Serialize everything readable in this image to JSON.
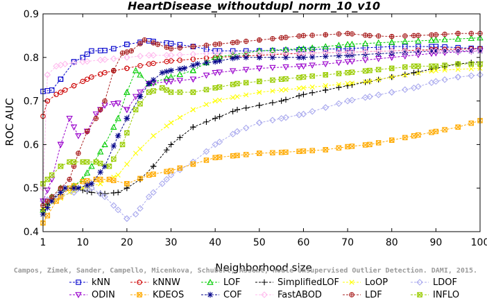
{
  "chart_data": {
    "type": "line",
    "title": "HeartDisease_withoutdupl_norm_10_v10",
    "xlabel": "Neighborhood size",
    "ylabel": "ROC AUC",
    "xlim": [
      1,
      100
    ],
    "ylim": [
      0.4,
      0.9
    ],
    "xticks": [
      1,
      10,
      20,
      30,
      40,
      50,
      60,
      70,
      80,
      90,
      100
    ],
    "yticks": [
      0.4,
      0.5,
      0.6,
      0.7,
      0.8,
      0.9
    ],
    "grid": false,
    "legend_position": "bottom",
    "credit": "Campos, Zimek, Sander, Campello, Micenkova, Schubert, Assent, Houle  Unsupervised Outlier Detection. DAMI, 2015.",
    "series": [
      {
        "name": "kNN",
        "color": "#0000cc",
        "marker": "square",
        "points": [
          [
            1,
            0.722
          ],
          [
            3,
            0.725
          ],
          [
            5,
            0.75
          ],
          [
            8,
            0.79
          ],
          [
            10,
            0.8
          ],
          [
            12,
            0.815
          ],
          [
            15,
            0.816
          ],
          [
            17,
            0.82
          ],
          [
            20,
            0.83
          ],
          [
            25,
            0.838
          ],
          [
            30,
            0.832
          ],
          [
            35,
            0.825
          ],
          [
            40,
            0.815
          ],
          [
            50,
            0.815
          ],
          [
            60,
            0.818
          ],
          [
            70,
            0.82
          ],
          [
            80,
            0.825
          ],
          [
            90,
            0.825
          ],
          [
            100,
            0.82
          ]
        ]
      },
      {
        "name": "kNNW",
        "color": "#cc0000",
        "marker": "circle",
        "points": [
          [
            1,
            0.665
          ],
          [
            2,
            0.7
          ],
          [
            4,
            0.715
          ],
          [
            6,
            0.725
          ],
          [
            8,
            0.735
          ],
          [
            10,
            0.745
          ],
          [
            12,
            0.755
          ],
          [
            15,
            0.765
          ],
          [
            20,
            0.775
          ],
          [
            25,
            0.785
          ],
          [
            30,
            0.792
          ],
          [
            40,
            0.8
          ],
          [
            50,
            0.805
          ],
          [
            60,
            0.81
          ],
          [
            70,
            0.812
          ],
          [
            80,
            0.815
          ],
          [
            90,
            0.818
          ],
          [
            100,
            0.82
          ]
        ]
      },
      {
        "name": "LOF",
        "color": "#00cc00",
        "marker": "triangle",
        "points": [
          [
            1,
            0.45
          ],
          [
            3,
            0.48
          ],
          [
            5,
            0.5
          ],
          [
            8,
            0.505
          ],
          [
            10,
            0.52
          ],
          [
            12,
            0.55
          ],
          [
            15,
            0.6
          ],
          [
            18,
            0.66
          ],
          [
            20,
            0.72
          ],
          [
            22,
            0.77
          ],
          [
            25,
            0.74
          ],
          [
            30,
            0.755
          ],
          [
            35,
            0.77
          ],
          [
            40,
            0.8
          ],
          [
            50,
            0.815
          ],
          [
            60,
            0.82
          ],
          [
            70,
            0.83
          ],
          [
            80,
            0.835
          ],
          [
            90,
            0.84
          ],
          [
            100,
            0.845
          ]
        ]
      },
      {
        "name": "SimplifiedLOF",
        "color": "#000000",
        "marker": "plus",
        "points": [
          [
            1,
            0.45
          ],
          [
            3,
            0.475
          ],
          [
            5,
            0.49
          ],
          [
            8,
            0.5
          ],
          [
            10,
            0.495
          ],
          [
            12,
            0.49
          ],
          [
            15,
            0.487
          ],
          [
            18,
            0.49
          ],
          [
            20,
            0.5
          ],
          [
            23,
            0.52
          ],
          [
            26,
            0.55
          ],
          [
            30,
            0.6
          ],
          [
            35,
            0.64
          ],
          [
            40,
            0.66
          ],
          [
            45,
            0.68
          ],
          [
            50,
            0.69
          ],
          [
            55,
            0.7
          ],
          [
            60,
            0.715
          ],
          [
            65,
            0.725
          ],
          [
            70,
            0.735
          ],
          [
            75,
            0.745
          ],
          [
            80,
            0.755
          ],
          [
            85,
            0.765
          ],
          [
            90,
            0.775
          ],
          [
            95,
            0.785
          ],
          [
            100,
            0.79
          ]
        ]
      },
      {
        "name": "LoOP",
        "color": "#ffff00",
        "marker": "cross",
        "points": [
          [
            1,
            0.45
          ],
          [
            4,
            0.47
          ],
          [
            7,
            0.49
          ],
          [
            10,
            0.5
          ],
          [
            14,
            0.51
          ],
          [
            18,
            0.53
          ],
          [
            22,
            0.58
          ],
          [
            26,
            0.62
          ],
          [
            30,
            0.65
          ],
          [
            35,
            0.68
          ],
          [
            40,
            0.7
          ],
          [
            45,
            0.71
          ],
          [
            50,
            0.72
          ],
          [
            55,
            0.725
          ],
          [
            60,
            0.73
          ],
          [
            65,
            0.735
          ],
          [
            70,
            0.74
          ],
          [
            75,
            0.745
          ],
          [
            80,
            0.755
          ],
          [
            90,
            0.77
          ],
          [
            100,
            0.775
          ]
        ]
      },
      {
        "name": "LDOF",
        "color": "#aaaaee",
        "marker": "diamond",
        "points": [
          [
            1,
            0.47
          ],
          [
            4,
            0.48
          ],
          [
            8,
            0.49
          ],
          [
            12,
            0.5
          ],
          [
            15,
            0.48
          ],
          [
            18,
            0.45
          ],
          [
            20,
            0.43
          ],
          [
            22,
            0.44
          ],
          [
            25,
            0.48
          ],
          [
            28,
            0.51
          ],
          [
            30,
            0.53
          ],
          [
            35,
            0.56
          ],
          [
            40,
            0.6
          ],
          [
            45,
            0.63
          ],
          [
            50,
            0.65
          ],
          [
            55,
            0.66
          ],
          [
            60,
            0.67
          ],
          [
            65,
            0.685
          ],
          [
            70,
            0.7
          ],
          [
            75,
            0.71
          ],
          [
            80,
            0.72
          ],
          [
            85,
            0.73
          ],
          [
            90,
            0.745
          ],
          [
            95,
            0.755
          ],
          [
            100,
            0.76
          ]
        ]
      },
      {
        "name": "ODIN",
        "color": "#9900cc",
        "marker": "triangle-down",
        "points": [
          [
            1,
            0.47
          ],
          [
            3,
            0.52
          ],
          [
            5,
            0.6
          ],
          [
            7,
            0.66
          ],
          [
            9,
            0.62
          ],
          [
            11,
            0.63
          ],
          [
            13,
            0.67
          ],
          [
            15,
            0.69
          ],
          [
            18,
            0.695
          ],
          [
            20,
            0.68
          ],
          [
            22,
            0.71
          ],
          [
            25,
            0.74
          ],
          [
            30,
            0.745
          ],
          [
            35,
            0.75
          ],
          [
            40,
            0.765
          ],
          [
            50,
            0.775
          ],
          [
            60,
            0.78
          ],
          [
            70,
            0.79
          ],
          [
            80,
            0.8
          ],
          [
            90,
            0.81
          ],
          [
            100,
            0.815
          ]
        ]
      },
      {
        "name": "KDEOS",
        "color": "#ffaa00",
        "marker": "square-x",
        "points": [
          [
            1,
            0.42
          ],
          [
            4,
            0.47
          ],
          [
            7,
            0.5
          ],
          [
            10,
            0.515
          ],
          [
            13,
            0.52
          ],
          [
            16,
            0.52
          ],
          [
            20,
            0.51
          ],
          [
            25,
            0.53
          ],
          [
            30,
            0.54
          ],
          [
            35,
            0.555
          ],
          [
            40,
            0.57
          ],
          [
            45,
            0.575
          ],
          [
            50,
            0.58
          ],
          [
            55,
            0.582
          ],
          [
            60,
            0.585
          ],
          [
            65,
            0.588
          ],
          [
            70,
            0.595
          ],
          [
            75,
            0.6
          ],
          [
            80,
            0.61
          ],
          [
            85,
            0.62
          ],
          [
            90,
            0.63
          ],
          [
            95,
            0.64
          ],
          [
            100,
            0.655
          ]
        ]
      },
      {
        "name": "COF",
        "color": "#000088",
        "marker": "star",
        "points": [
          [
            1,
            0.44
          ],
          [
            3,
            0.47
          ],
          [
            6,
            0.5
          ],
          [
            9,
            0.5
          ],
          [
            12,
            0.51
          ],
          [
            15,
            0.55
          ],
          [
            18,
            0.62
          ],
          [
            20,
            0.66
          ],
          [
            23,
            0.71
          ],
          [
            25,
            0.74
          ],
          [
            28,
            0.765
          ],
          [
            30,
            0.77
          ],
          [
            33,
            0.775
          ],
          [
            36,
            0.785
          ],
          [
            40,
            0.79
          ],
          [
            45,
            0.8
          ],
          [
            50,
            0.8
          ],
          [
            60,
            0.8
          ],
          [
            70,
            0.805
          ],
          [
            80,
            0.81
          ],
          [
            90,
            0.815
          ],
          [
            100,
            0.815
          ]
        ]
      },
      {
        "name": "FastABOD",
        "color": "#ffbbee",
        "marker": "diamond",
        "points": [
          [
            1,
            0.5
          ],
          [
            2,
            0.76
          ],
          [
            4,
            0.78
          ],
          [
            6,
            0.785
          ],
          [
            10,
            0.79
          ],
          [
            15,
            0.795
          ],
          [
            20,
            0.8
          ],
          [
            25,
            0.805
          ],
          [
            30,
            0.805
          ],
          [
            40,
            0.81
          ],
          [
            50,
            0.81
          ],
          [
            60,
            0.81
          ],
          [
            70,
            0.812
          ],
          [
            80,
            0.815
          ],
          [
            90,
            0.815
          ],
          [
            100,
            0.815
          ]
        ]
      },
      {
        "name": "LDF",
        "color": "#aa2222",
        "marker": "circle-plus",
        "points": [
          [
            1,
            0.46
          ],
          [
            3,
            0.48
          ],
          [
            5,
            0.5
          ],
          [
            7,
            0.52
          ],
          [
            9,
            0.58
          ],
          [
            11,
            0.63
          ],
          [
            13,
            0.66
          ],
          [
            15,
            0.7
          ],
          [
            17,
            0.77
          ],
          [
            19,
            0.81
          ],
          [
            21,
            0.815
          ],
          [
            24,
            0.84
          ],
          [
            27,
            0.83
          ],
          [
            30,
            0.82
          ],
          [
            35,
            0.825
          ],
          [
            40,
            0.83
          ],
          [
            45,
            0.835
          ],
          [
            50,
            0.84
          ],
          [
            55,
            0.845
          ],
          [
            60,
            0.85
          ],
          [
            65,
            0.852
          ],
          [
            70,
            0.855
          ],
          [
            75,
            0.85
          ],
          [
            80,
            0.848
          ],
          [
            85,
            0.85
          ],
          [
            90,
            0.852
          ],
          [
            95,
            0.855
          ],
          [
            100,
            0.855
          ]
        ]
      },
      {
        "name": "INFLO",
        "color": "#99cc00",
        "marker": "square-x",
        "points": [
          [
            1,
            0.51
          ],
          [
            3,
            0.53
          ],
          [
            5,
            0.55
          ],
          [
            7,
            0.56
          ],
          [
            10,
            0.56
          ],
          [
            13,
            0.56
          ],
          [
            16,
            0.55
          ],
          [
            19,
            0.6
          ],
          [
            22,
            0.68
          ],
          [
            25,
            0.72
          ],
          [
            28,
            0.73
          ],
          [
            30,
            0.72
          ],
          [
            35,
            0.72
          ],
          [
            40,
            0.73
          ],
          [
            45,
            0.74
          ],
          [
            50,
            0.745
          ],
          [
            55,
            0.75
          ],
          [
            60,
            0.755
          ],
          [
            65,
            0.76
          ],
          [
            70,
            0.765
          ],
          [
            75,
            0.77
          ],
          [
            80,
            0.775
          ],
          [
            85,
            0.78
          ],
          [
            90,
            0.78
          ],
          [
            95,
            0.785
          ],
          [
            100,
            0.785
          ]
        ]
      }
    ]
  }
}
